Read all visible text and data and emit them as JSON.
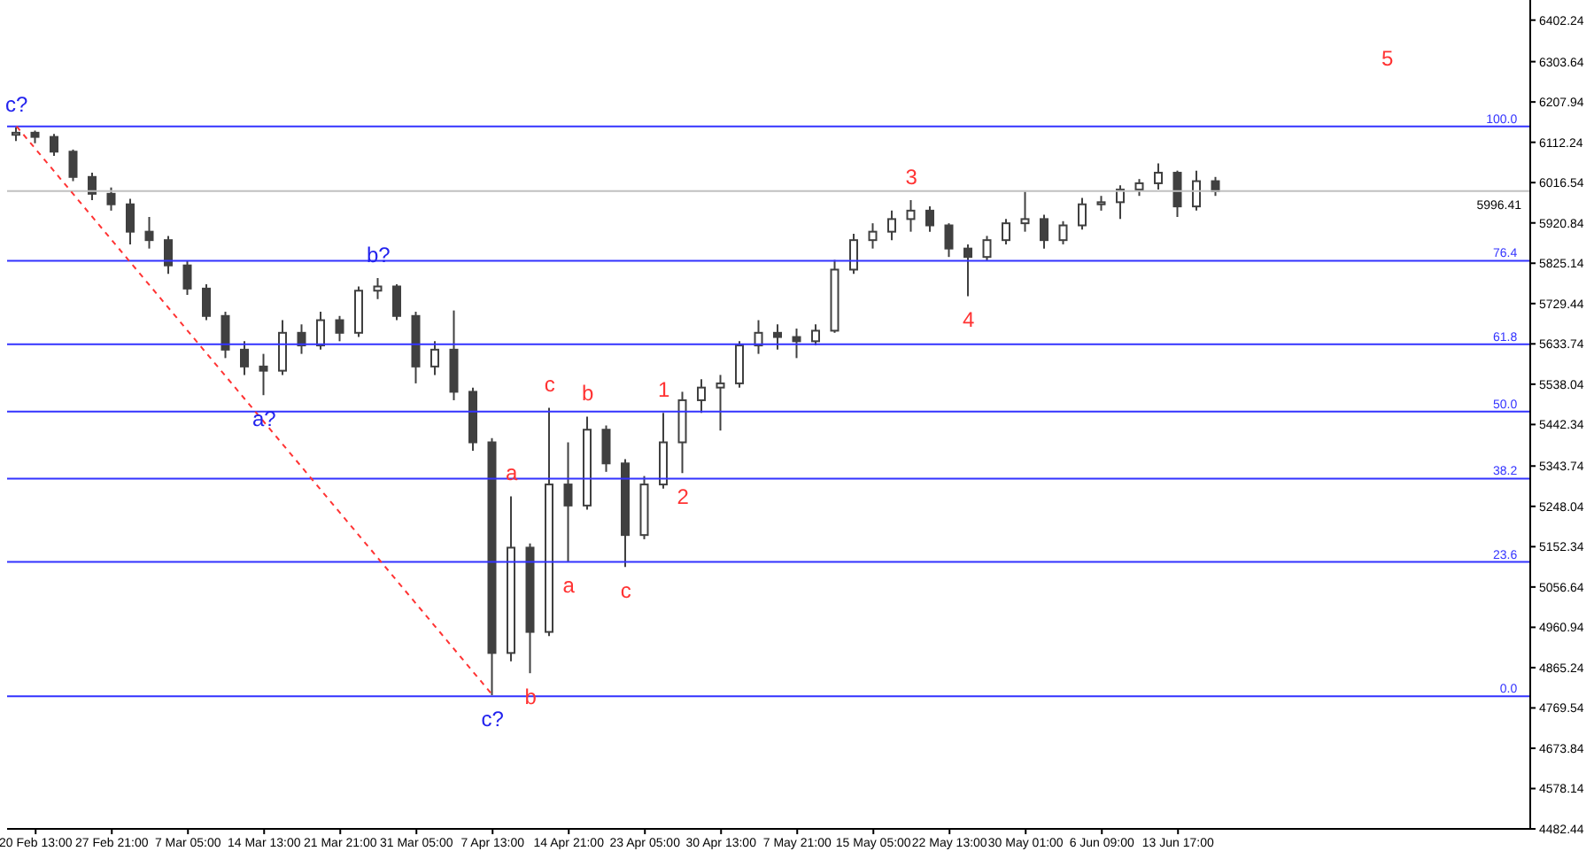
{
  "chart_data": {
    "type": "candlestick",
    "categories": [
      null,
      "20 Feb 13:00",
      null,
      null,
      null,
      "27 Feb 21:00",
      null,
      null,
      null,
      "7 Mar 05:00",
      null,
      null,
      null,
      "14 Mar 13:00",
      null,
      null,
      null,
      "21 Mar 21:00",
      null,
      null,
      null,
      "31 Mar 05:00",
      null,
      null,
      null,
      "7 Apr 13:00",
      null,
      null,
      null,
      "14 Apr 21:00",
      null,
      null,
      null,
      "23 Apr 05:00",
      null,
      null,
      null,
      "30 Apr 13:00",
      null,
      null,
      null,
      "7 May 21:00",
      null,
      null,
      null,
      "15 May 05:00",
      null,
      null,
      null,
      "22 May 13:00",
      null,
      null,
      null,
      "30 May 01:00",
      null,
      null,
      null,
      "6 Jun 09:00",
      null,
      null,
      null,
      "13 Jun 17:00",
      null,
      null,
      null,
      null,
      null,
      null,
      null,
      null,
      null,
      null,
      null,
      null,
      null,
      null,
      null,
      null,
      null,
      null
    ],
    "color": "#404040",
    "ohlc": [
      [
        6130,
        6148,
        6115,
        6135
      ],
      [
        6135,
        6140,
        6110,
        6125
      ],
      [
        6125,
        6132,
        6080,
        6090
      ],
      [
        6090,
        6095,
        6020,
        6030
      ],
      [
        6030,
        6040,
        5975,
        5990
      ],
      [
        5990,
        6005,
        5950,
        5965
      ],
      [
        5965,
        5978,
        5870,
        5900
      ],
      [
        5900,
        5935,
        5860,
        5880
      ],
      [
        5880,
        5890,
        5800,
        5820
      ],
      [
        5820,
        5830,
        5750,
        5765
      ],
      [
        5765,
        5775,
        5690,
        5700
      ],
      [
        5700,
        5710,
        5600,
        5620
      ],
      [
        5620,
        5640,
        5560,
        5580
      ],
      [
        5580,
        5610,
        5512,
        5570
      ],
      [
        5570,
        5690,
        5560,
        5660
      ],
      [
        5660,
        5680,
        5610,
        5630
      ],
      [
        5630,
        5710,
        5620,
        5690
      ],
      [
        5690,
        5700,
        5640,
        5660
      ],
      [
        5660,
        5770,
        5650,
        5760
      ],
      [
        5760,
        5790,
        5740,
        5770
      ],
      [
        5770,
        5775,
        5690,
        5700
      ],
      [
        5700,
        5710,
        5540,
        5580
      ],
      [
        5580,
        5640,
        5560,
        5620
      ],
      [
        5620,
        5713,
        5500,
        5520
      ],
      [
        5520,
        5530,
        5380,
        5400
      ],
      [
        5400,
        5410,
        4800,
        4900
      ],
      [
        4900,
        5272,
        4880,
        5150
      ],
      [
        5150,
        5160,
        4852,
        4950
      ],
      [
        4950,
        5482,
        4940,
        5300
      ],
      [
        5300,
        5400,
        5117,
        5250
      ],
      [
        5250,
        5461,
        5240,
        5430
      ],
      [
        5430,
        5440,
        5330,
        5350
      ],
      [
        5350,
        5360,
        5104,
        5180
      ],
      [
        5180,
        5320,
        5170,
        5300
      ],
      [
        5300,
        5470,
        5290,
        5400
      ],
      [
        5400,
        5520,
        5327,
        5500
      ],
      [
        5500,
        5550,
        5470,
        5530
      ],
      [
        5530,
        5560,
        5428,
        5540
      ],
      [
        5540,
        5640,
        5530,
        5630
      ],
      [
        5630,
        5690,
        5610,
        5660
      ],
      [
        5660,
        5680,
        5620,
        5650
      ],
      [
        5650,
        5670,
        5600,
        5640
      ],
      [
        5640,
        5680,
        5630,
        5665
      ],
      [
        5665,
        5833,
        5660,
        5810
      ],
      [
        5810,
        5895,
        5800,
        5880
      ],
      [
        5880,
        5920,
        5860,
        5900
      ],
      [
        5900,
        5950,
        5880,
        5930
      ],
      [
        5930,
        5975,
        5900,
        5950
      ],
      [
        5950,
        5960,
        5900,
        5915
      ],
      [
        5915,
        5920,
        5840,
        5860
      ],
      [
        5860,
        5870,
        5747,
        5840
      ],
      [
        5840,
        5890,
        5830,
        5880
      ],
      [
        5880,
        5930,
        5870,
        5920
      ],
      [
        5920,
        5995,
        5900,
        5930
      ],
      [
        5930,
        5940,
        5860,
        5880
      ],
      [
        5880,
        5925,
        5870,
        5915
      ],
      [
        5915,
        5980,
        5905,
        5965
      ],
      [
        5965,
        5985,
        5950,
        5970
      ],
      [
        5970,
        6010,
        5930,
        6000
      ],
      [
        6000,
        6025,
        5985,
        6015
      ],
      [
        6015,
        6062,
        6000,
        6040
      ],
      [
        6040,
        6045,
        5935,
        5960
      ],
      [
        5960,
        6045,
        5950,
        6020
      ],
      [
        6020,
        6030,
        5985,
        5996
      ],
      null,
      null,
      null,
      null,
      null,
      null,
      null,
      null,
      null,
      null,
      null,
      null,
      null,
      null,
      null,
      null
    ],
    "series": [
      {
        "type": "line",
        "line_style": "dashed",
        "color": "#ff3333",
        "values": [
          6150,
          null,
          null,
          null,
          null,
          null,
          null,
          null,
          null,
          null,
          null,
          null,
          null,
          null,
          null,
          null,
          null,
          null,
          null,
          null,
          null,
          null,
          null,
          null,
          null,
          4800,
          null,
          null,
          null,
          null,
          null,
          null,
          null,
          null,
          null,
          null,
          null,
          null,
          null,
          null,
          null,
          null,
          null,
          null,
          null,
          null,
          null,
          null,
          null,
          null,
          null,
          null,
          null,
          null,
          null,
          null,
          null,
          null,
          null,
          null,
          null,
          null,
          null,
          null,
          null,
          null,
          null,
          null,
          null,
          null,
          null,
          null,
          null,
          null,
          null,
          null,
          null,
          null,
          null,
          null
        ]
      }
    ],
    "ylim": [
      4482.44,
      6450
    ],
    "yticks": [
      4482.44,
      4578.14,
      4673.84,
      4769.54,
      4865.24,
      4960.94,
      5056.64,
      5152.34,
      5248.04,
      5343.74,
      5442.34,
      5538.04,
      5633.74,
      5729.44,
      5825.14,
      5920.84,
      6016.54,
      6112.24,
      6207.94,
      6303.64,
      6402.24
    ],
    "ref_lines": [
      {
        "axis": "y",
        "value": 6150,
        "color": "#3333ff"
      },
      {
        "axis": "y",
        "value": 5831,
        "color": "#3333ff"
      },
      {
        "axis": "y",
        "value": 5633,
        "color": "#3333ff"
      },
      {
        "axis": "y",
        "value": 5473,
        "color": "#3333ff"
      },
      {
        "axis": "y",
        "value": 5314,
        "color": "#3333ff"
      },
      {
        "axis": "y",
        "value": 5116,
        "color": "#3333ff"
      },
      {
        "axis": "y",
        "value": 4797,
        "color": "#3333ff"
      },
      {
        "axis": "y",
        "value": 5996.41,
        "label": "5996.41",
        "color": "#c0c0c0"
      }
    ],
    "annotations": [
      {
        "text": "c?",
        "y": 6148
      },
      {
        "text": "a?",
        "y": 5512
      },
      {
        "text": "b?",
        "y": 5790
      },
      {
        "text": "c?",
        "y": 4800
      },
      {
        "text": "a",
        "y": 5272
      },
      {
        "text": "b",
        "y": 4852
      },
      {
        "text": "c",
        "y": 5482
      },
      {
        "text": "a",
        "y": 5117
      },
      {
        "text": "b",
        "y": 5461
      },
      {
        "text": "c",
        "y": 5104
      },
      {
        "text": "1",
        "y": 5470
      },
      {
        "text": "2",
        "y": 5327
      },
      {
        "text": "3",
        "y": 5975
      },
      {
        "text": "4",
        "y": 5747
      },
      "5",
      {
        "text": "100.0",
        "y": 6150
      },
      {
        "text": "76.4",
        "y": 5831
      },
      {
        "text": "61.8",
        "y": 5633
      },
      {
        "text": "50.0",
        "y": 5473
      },
      {
        "text": "38.2",
        "y": 5314
      },
      {
        "text": "23.6",
        "y": 5116
      },
      {
        "text": "0.0",
        "y": 4797
      }
    ]
  }
}
